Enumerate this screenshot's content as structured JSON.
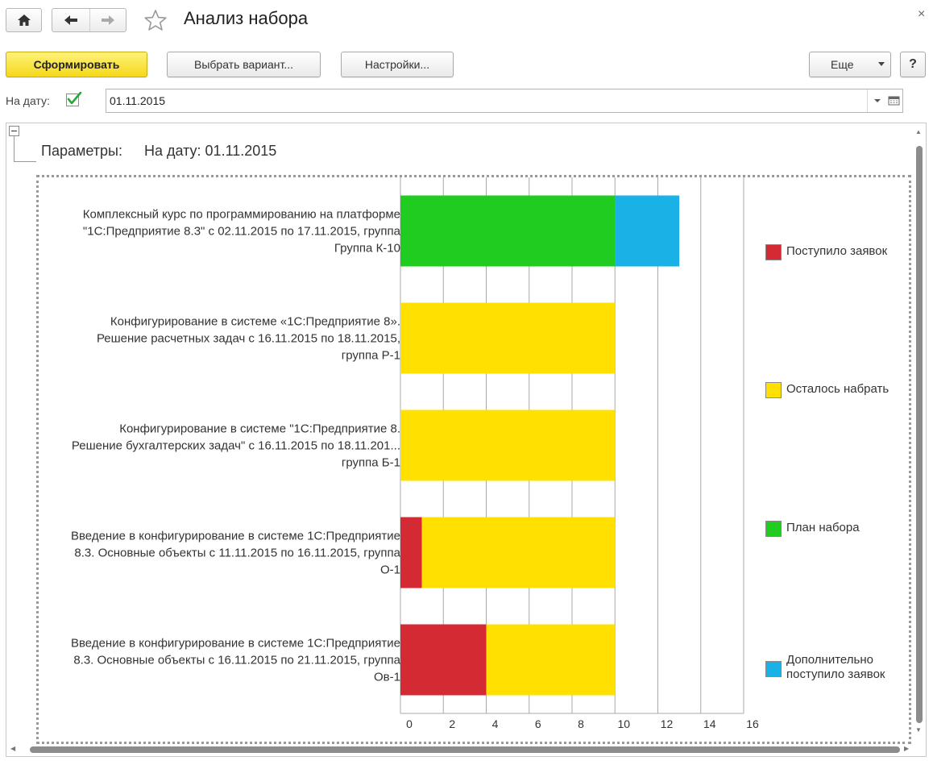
{
  "window": {
    "title": "Анализ набора",
    "close_glyph": "×"
  },
  "toolbar": {
    "generate_label": "Сформировать",
    "variant_label": "Выбрать вариант...",
    "settings_label": "Настройки...",
    "more_label": "Еще",
    "help_label": "?"
  },
  "filters": {
    "date_label": "На дату:",
    "date_checked": true,
    "date_value": "01.11.2015"
  },
  "report": {
    "params_label": "Параметры:",
    "params_value": "На дату: 01.11.2015"
  },
  "icons": {
    "home": "home-icon",
    "back": "arrow-left-icon",
    "forward": "arrow-right-icon",
    "favorite": "star-icon",
    "dropdown": "chevron-down-icon",
    "calendar": "calendar-icon"
  },
  "chart_data": {
    "type": "bar",
    "orientation": "horizontal",
    "stacked": true,
    "categories": [
      [
        "Комплексный курс по программированию на платформе",
        "\"1С:Предприятие 8.3\" с 02.11.2015 по 17.11.2015, группа",
        "Группа К-10"
      ],
      [
        "Конфигурирование в системе «1С:Предприятие 8».",
        "Решение расчетных задач с 16.11.2015 по 18.11.2015,",
        "группа Р-1"
      ],
      [
        "Конфигурирование в системе \"1С:Предприятие 8.",
        "Решение бухгалтерских задач\" с 16.11.2015 по 18.11.201...",
        "группа Б-1"
      ],
      [
        "Введение в конфигурирование в системе 1С:Предприятие",
        "8.3. Основные объекты с 11.11.2015 по 16.11.2015, группа",
        "О-1"
      ],
      [
        "Введение в конфигурирование в системе 1С:Предприятие",
        "8.3. Основные объекты с 16.11.2015 по 21.11.2015, группа",
        "Ов-1"
      ]
    ],
    "series": [
      {
        "name": "Поступило заявок",
        "color": "#d42a33",
        "values": [
          0,
          0,
          0,
          1,
          4
        ]
      },
      {
        "name": "Осталось набрать",
        "color": "#ffe000",
        "values": [
          0,
          10,
          10,
          9,
          6
        ]
      },
      {
        "name": "План набора",
        "color": "#1fcc1f",
        "values": [
          10,
          0,
          0,
          0,
          0
        ]
      },
      {
        "name": "Дополнительно поступило заявок",
        "color": "#1ab2e6",
        "values": [
          3,
          0,
          0,
          0,
          0
        ]
      }
    ],
    "x_ticks": [
      "0",
      "2",
      "4",
      "6",
      "8",
      "10",
      "12",
      "14",
      "16"
    ],
    "xlim": [
      0,
      16
    ],
    "grid": true,
    "legend_position": "right",
    "title": "",
    "xlabel": "",
    "ylabel": ""
  }
}
